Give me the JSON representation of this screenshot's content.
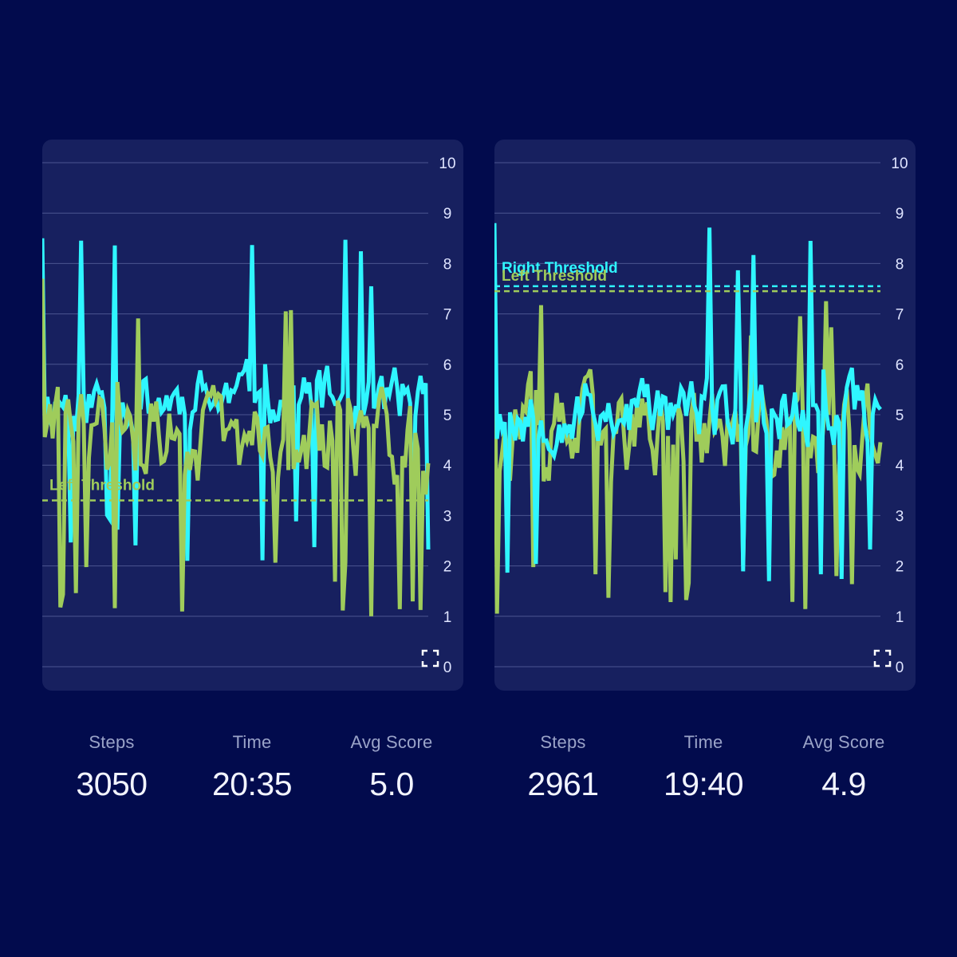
{
  "colors": {
    "background": "#020b4d",
    "panel": "#17205f",
    "gridline": "#4b5590",
    "tick_text": "#dfe4ff",
    "right_series": "#2ff6ff",
    "left_series": "#9fcc5b"
  },
  "icons": {
    "expand": "expand-icon"
  },
  "sessions": [
    {
      "chart_data": {
        "type": "line",
        "ylim": [
          0,
          10
        ],
        "y_ticks": [
          "10",
          "9",
          "8",
          "7",
          "6",
          "5",
          "4",
          "3",
          "2",
          "1",
          "0"
        ],
        "grid": true,
        "series": [
          {
            "key": "right",
            "color": "#2ff6ff",
            "typical": 5.3,
            "spread": 0.5,
            "low": 2.1,
            "high": 8.5,
            "seed": 11
          },
          {
            "key": "left",
            "color": "#9fcc5b",
            "typical": 4.5,
            "spread": 0.75,
            "low": 1.0,
            "high": 7.7,
            "seed": 29
          }
        ],
        "thresholds": [
          {
            "series": "left",
            "label": "Left Threshold",
            "value": 3.3,
            "color": "#9fcc5b"
          }
        ]
      },
      "stats": [
        {
          "label": "Steps",
          "value": "3050"
        },
        {
          "label": "Time",
          "value": "20:35"
        },
        {
          "label": "Avg Score",
          "value": "5.0"
        }
      ]
    },
    {
      "chart_data": {
        "type": "line",
        "ylim": [
          0,
          10
        ],
        "y_ticks": [
          "10",
          "9",
          "8",
          "7",
          "6",
          "5",
          "4",
          "3",
          "2",
          "1",
          "0"
        ],
        "grid": true,
        "series": [
          {
            "key": "left",
            "color": "#9fcc5b",
            "typical": 4.6,
            "spread": 0.75,
            "low": 1.0,
            "high": 7.5,
            "seed": 37
          },
          {
            "key": "right",
            "color": "#2ff6ff",
            "typical": 5.1,
            "spread": 0.55,
            "low": 1.4,
            "high": 8.8,
            "seed": 53
          }
        ],
        "thresholds": [
          {
            "series": "right",
            "label": "Right Threshold",
            "value": 7.55,
            "color": "#2ff6ff"
          },
          {
            "series": "left",
            "label": "Left Threshold",
            "value": 7.45,
            "color": "#9fcc5b"
          }
        ]
      },
      "stats": [
        {
          "label": "Steps",
          "value": "2961"
        },
        {
          "label": "Time",
          "value": "19:40"
        },
        {
          "label": "Avg Score",
          "value": "4.9"
        }
      ]
    }
  ]
}
